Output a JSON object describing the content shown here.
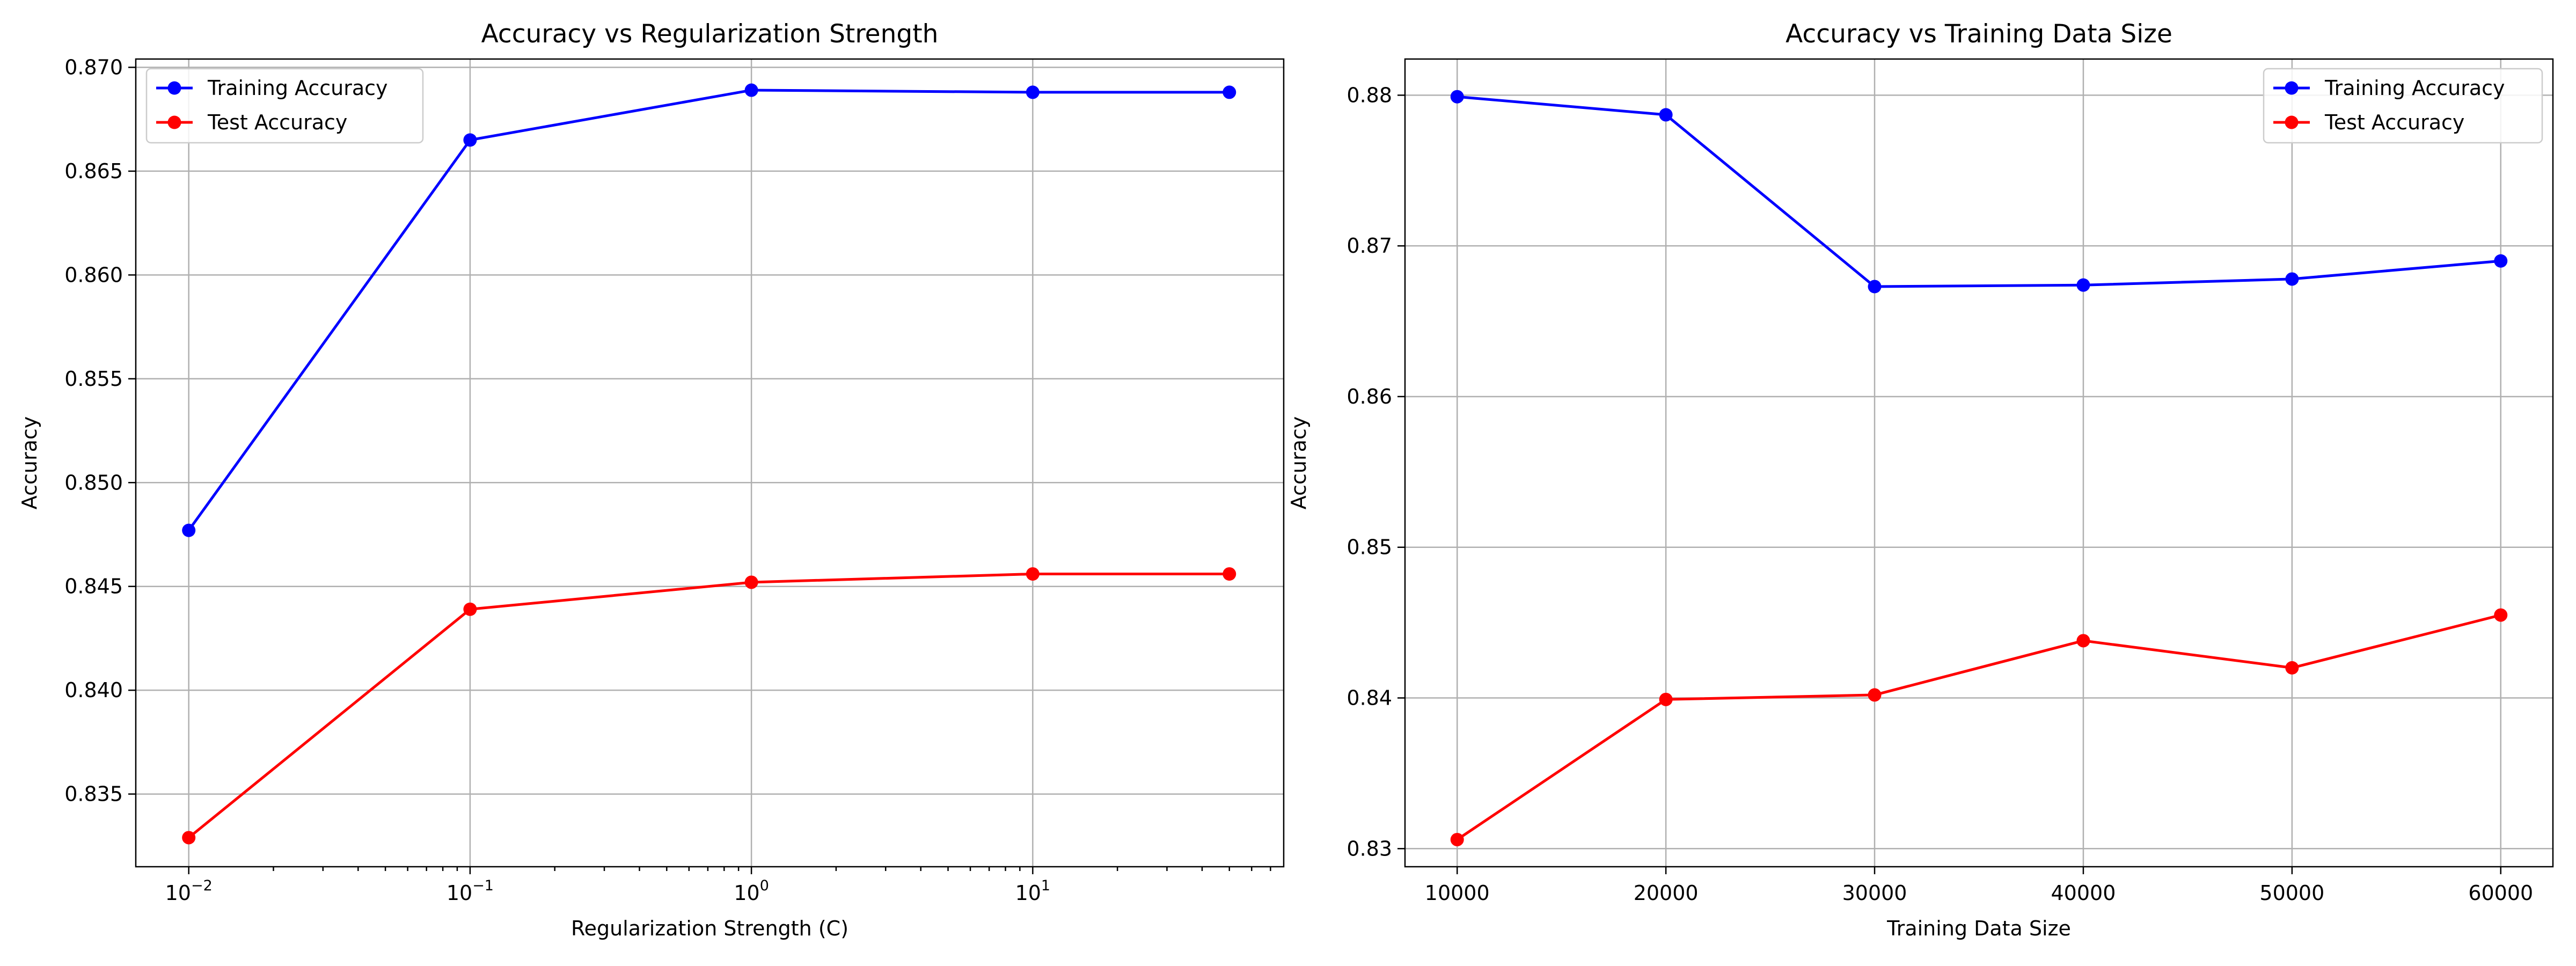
{
  "chart_data": [
    {
      "type": "line",
      "title": "Accuracy vs Regularization Strength",
      "xlabel": "Regularization Strength (C)",
      "ylabel": "Accuracy",
      "xscale": "log",
      "x": [
        0.01,
        0.1,
        1,
        10,
        50
      ],
      "xticks": [
        {
          "value": 0.01,
          "base": "10",
          "exp": "−2"
        },
        {
          "value": 0.1,
          "base": "10",
          "exp": "−1"
        },
        {
          "value": 1,
          "base": "10",
          "exp": "0"
        },
        {
          "value": 10,
          "base": "10",
          "exp": "1"
        }
      ],
      "yticks": [
        "0.835",
        "0.840",
        "0.845",
        "0.850",
        "0.855",
        "0.860",
        "0.865",
        "0.870"
      ],
      "ylim": [
        0.8315,
        0.8704
      ],
      "grid": true,
      "legend_position": "upper-left",
      "series": [
        {
          "name": "Training Accuracy",
          "color": "#0000ff",
          "values": [
            0.8477,
            0.8665,
            0.8689,
            0.8688,
            0.8688
          ]
        },
        {
          "name": "Test Accuracy",
          "color": "#ff0000",
          "values": [
            0.8329,
            0.8439,
            0.8452,
            0.8456,
            0.8456
          ]
        }
      ]
    },
    {
      "type": "line",
      "title": "Accuracy vs Training Data Size",
      "xlabel": "Training Data Size",
      "ylabel": "Accuracy",
      "xscale": "linear",
      "x": [
        10000,
        20000,
        30000,
        40000,
        50000,
        60000
      ],
      "xticks": [
        {
          "value": 10000,
          "label": "10000"
        },
        {
          "value": 20000,
          "label": "20000"
        },
        {
          "value": 30000,
          "label": "30000"
        },
        {
          "value": 40000,
          "label": "40000"
        },
        {
          "value": 50000,
          "label": "50000"
        },
        {
          "value": 60000,
          "label": "60000"
        }
      ],
      "yticks": [
        "0.83",
        "0.84",
        "0.85",
        "0.86",
        "0.87",
        "0.88"
      ],
      "ylim": [
        0.8288,
        0.8824
      ],
      "grid": true,
      "legend_position": "upper-right",
      "series": [
        {
          "name": "Training Accuracy",
          "color": "#0000ff",
          "values": [
            0.8799,
            0.8787,
            0.8673,
            0.8674,
            0.8678,
            0.869
          ]
        },
        {
          "name": "Test Accuracy",
          "color": "#ff0000",
          "values": [
            0.8306,
            0.8399,
            0.8402,
            0.8438,
            0.842,
            0.8455
          ]
        }
      ]
    }
  ]
}
